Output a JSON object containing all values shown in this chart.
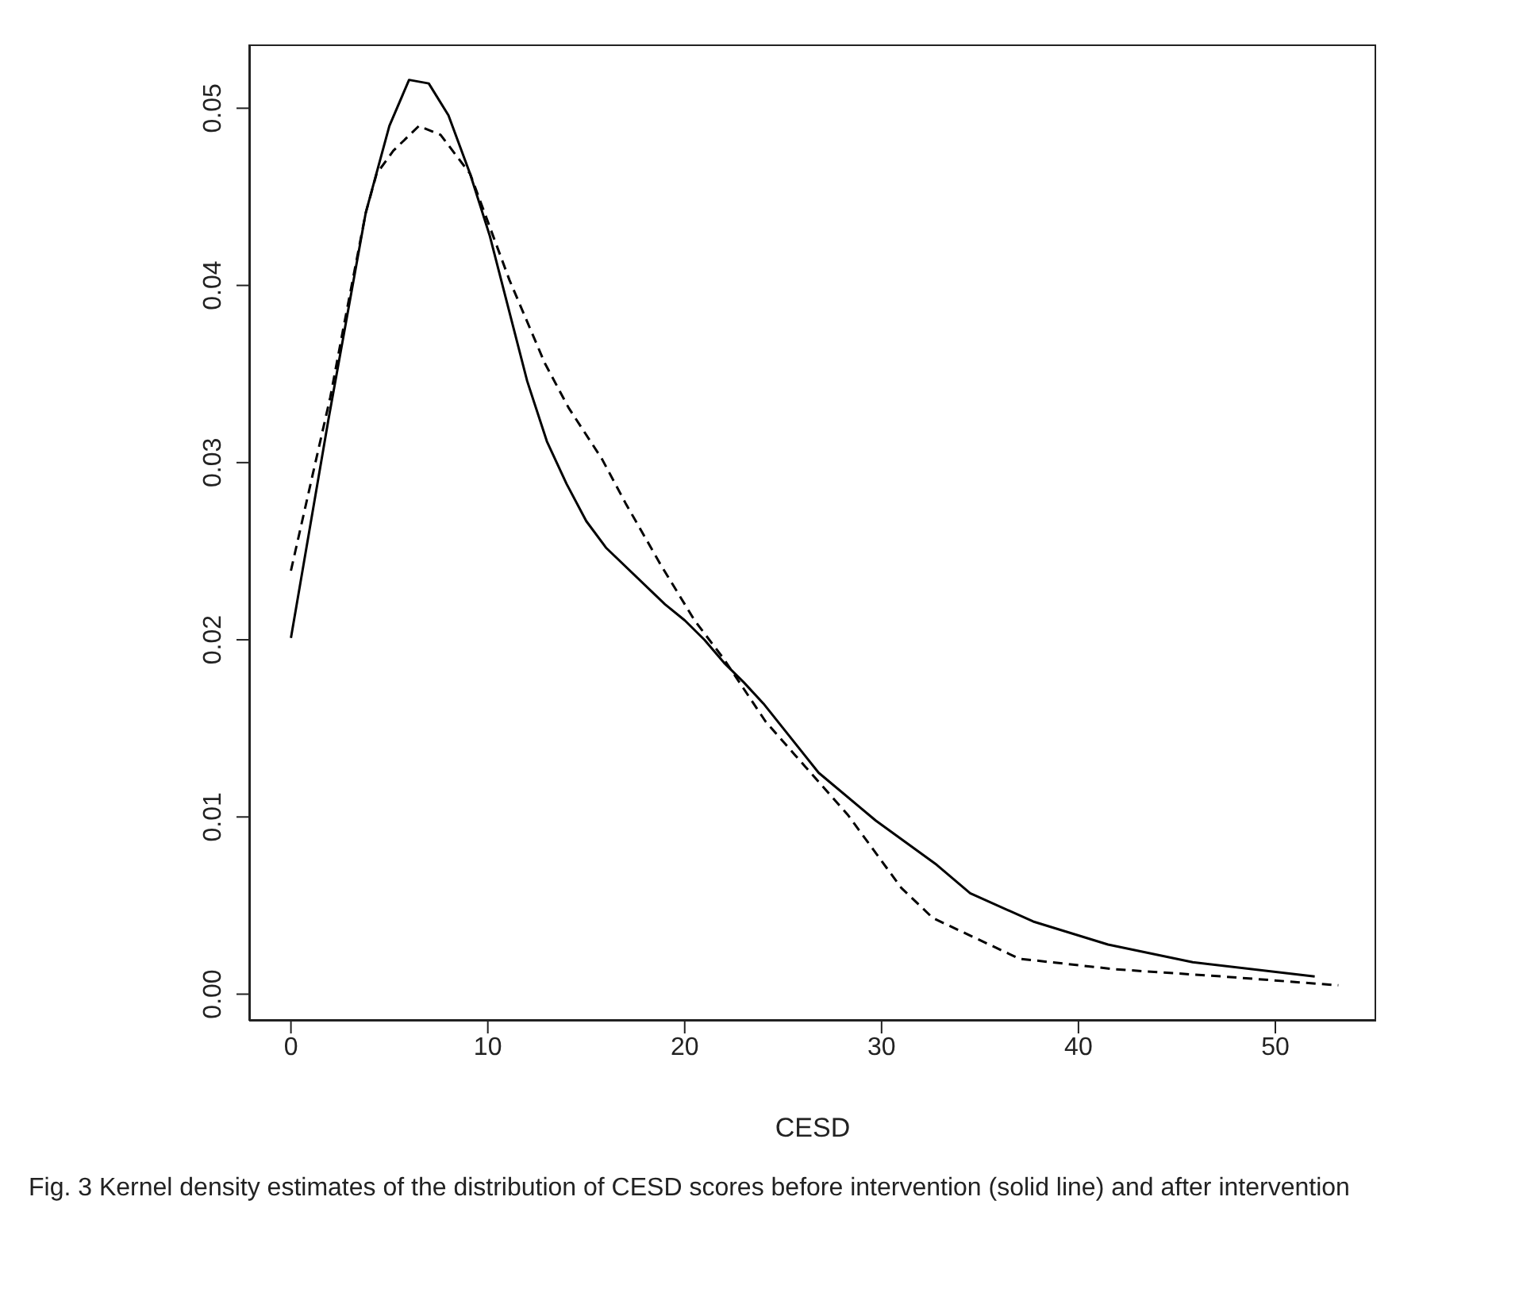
{
  "chart_data": {
    "type": "line",
    "xlabel": "CESD",
    "xlim": [
      -2.12,
      55.12
    ],
    "xticks": [
      0,
      10,
      20,
      30,
      40,
      50
    ],
    "ylim": [
      -0.0015,
      0.0536
    ],
    "yticks": [
      {
        "value": 0,
        "label": "0.00"
      },
      {
        "value": 0.01,
        "label": "0.01"
      },
      {
        "value": 0.02,
        "label": "0.02"
      },
      {
        "value": 0.03,
        "label": "0.03"
      },
      {
        "value": 0.04,
        "label": "0.04"
      },
      {
        "value": 0.05,
        "label": "0.05"
      }
    ],
    "grid": false,
    "legend": false,
    "marker": "none",
    "series": [
      {
        "color": "#000000",
        "line_style": "solid",
        "x": [
          0,
          1.9,
          3.8,
          5,
          6,
          7,
          8,
          9.1,
          10.1,
          12,
          13,
          14,
          15,
          16,
          19,
          20,
          21,
          22,
          23,
          24,
          26.8,
          29.7,
          32.8,
          34.5,
          37.7,
          41.5,
          45.8,
          52
        ],
        "values": [
          0.0201,
          0.0324,
          0.0441,
          0.049,
          0.0516,
          0.0514,
          0.0496,
          0.0463,
          0.0428,
          0.0346,
          0.0312,
          0.0288,
          0.0267,
          0.0252,
          0.022,
          0.0211,
          0.02,
          0.0187,
          0.0176,
          0.0164,
          0.0125,
          0.0098,
          0.0073,
          0.0057,
          0.0041,
          0.0028,
          0.0018,
          0.001
        ]
      },
      {
        "color": "#000000",
        "line_style": "dashed",
        "x": [
          0,
          1.1,
          2,
          2.7,
          3.8,
          4.35,
          5.2,
          6.5,
          7.6,
          9.1,
          11.1,
          12.9,
          14.1,
          15.8,
          17,
          18.8,
          20.5,
          22,
          24.1,
          25.6,
          28.3,
          31,
          32.6,
          37,
          41.9,
          47.3,
          53.2
        ],
        "values": [
          0.0239,
          0.0293,
          0.0337,
          0.0378,
          0.0441,
          0.0463,
          0.0476,
          0.049,
          0.0485,
          0.0463,
          0.0403,
          0.0356,
          0.0331,
          0.0302,
          0.0277,
          0.0242,
          0.0211,
          0.0189,
          0.0154,
          0.0135,
          0.0101,
          0.006,
          0.0043,
          0.002,
          0.0014,
          0.001,
          0.0005
        ]
      }
    ],
    "annotations": [
      "Fig. 3  Kernel density estimates of the distribution of CESD scores before intervention (solid line) and after intervention"
    ]
  }
}
